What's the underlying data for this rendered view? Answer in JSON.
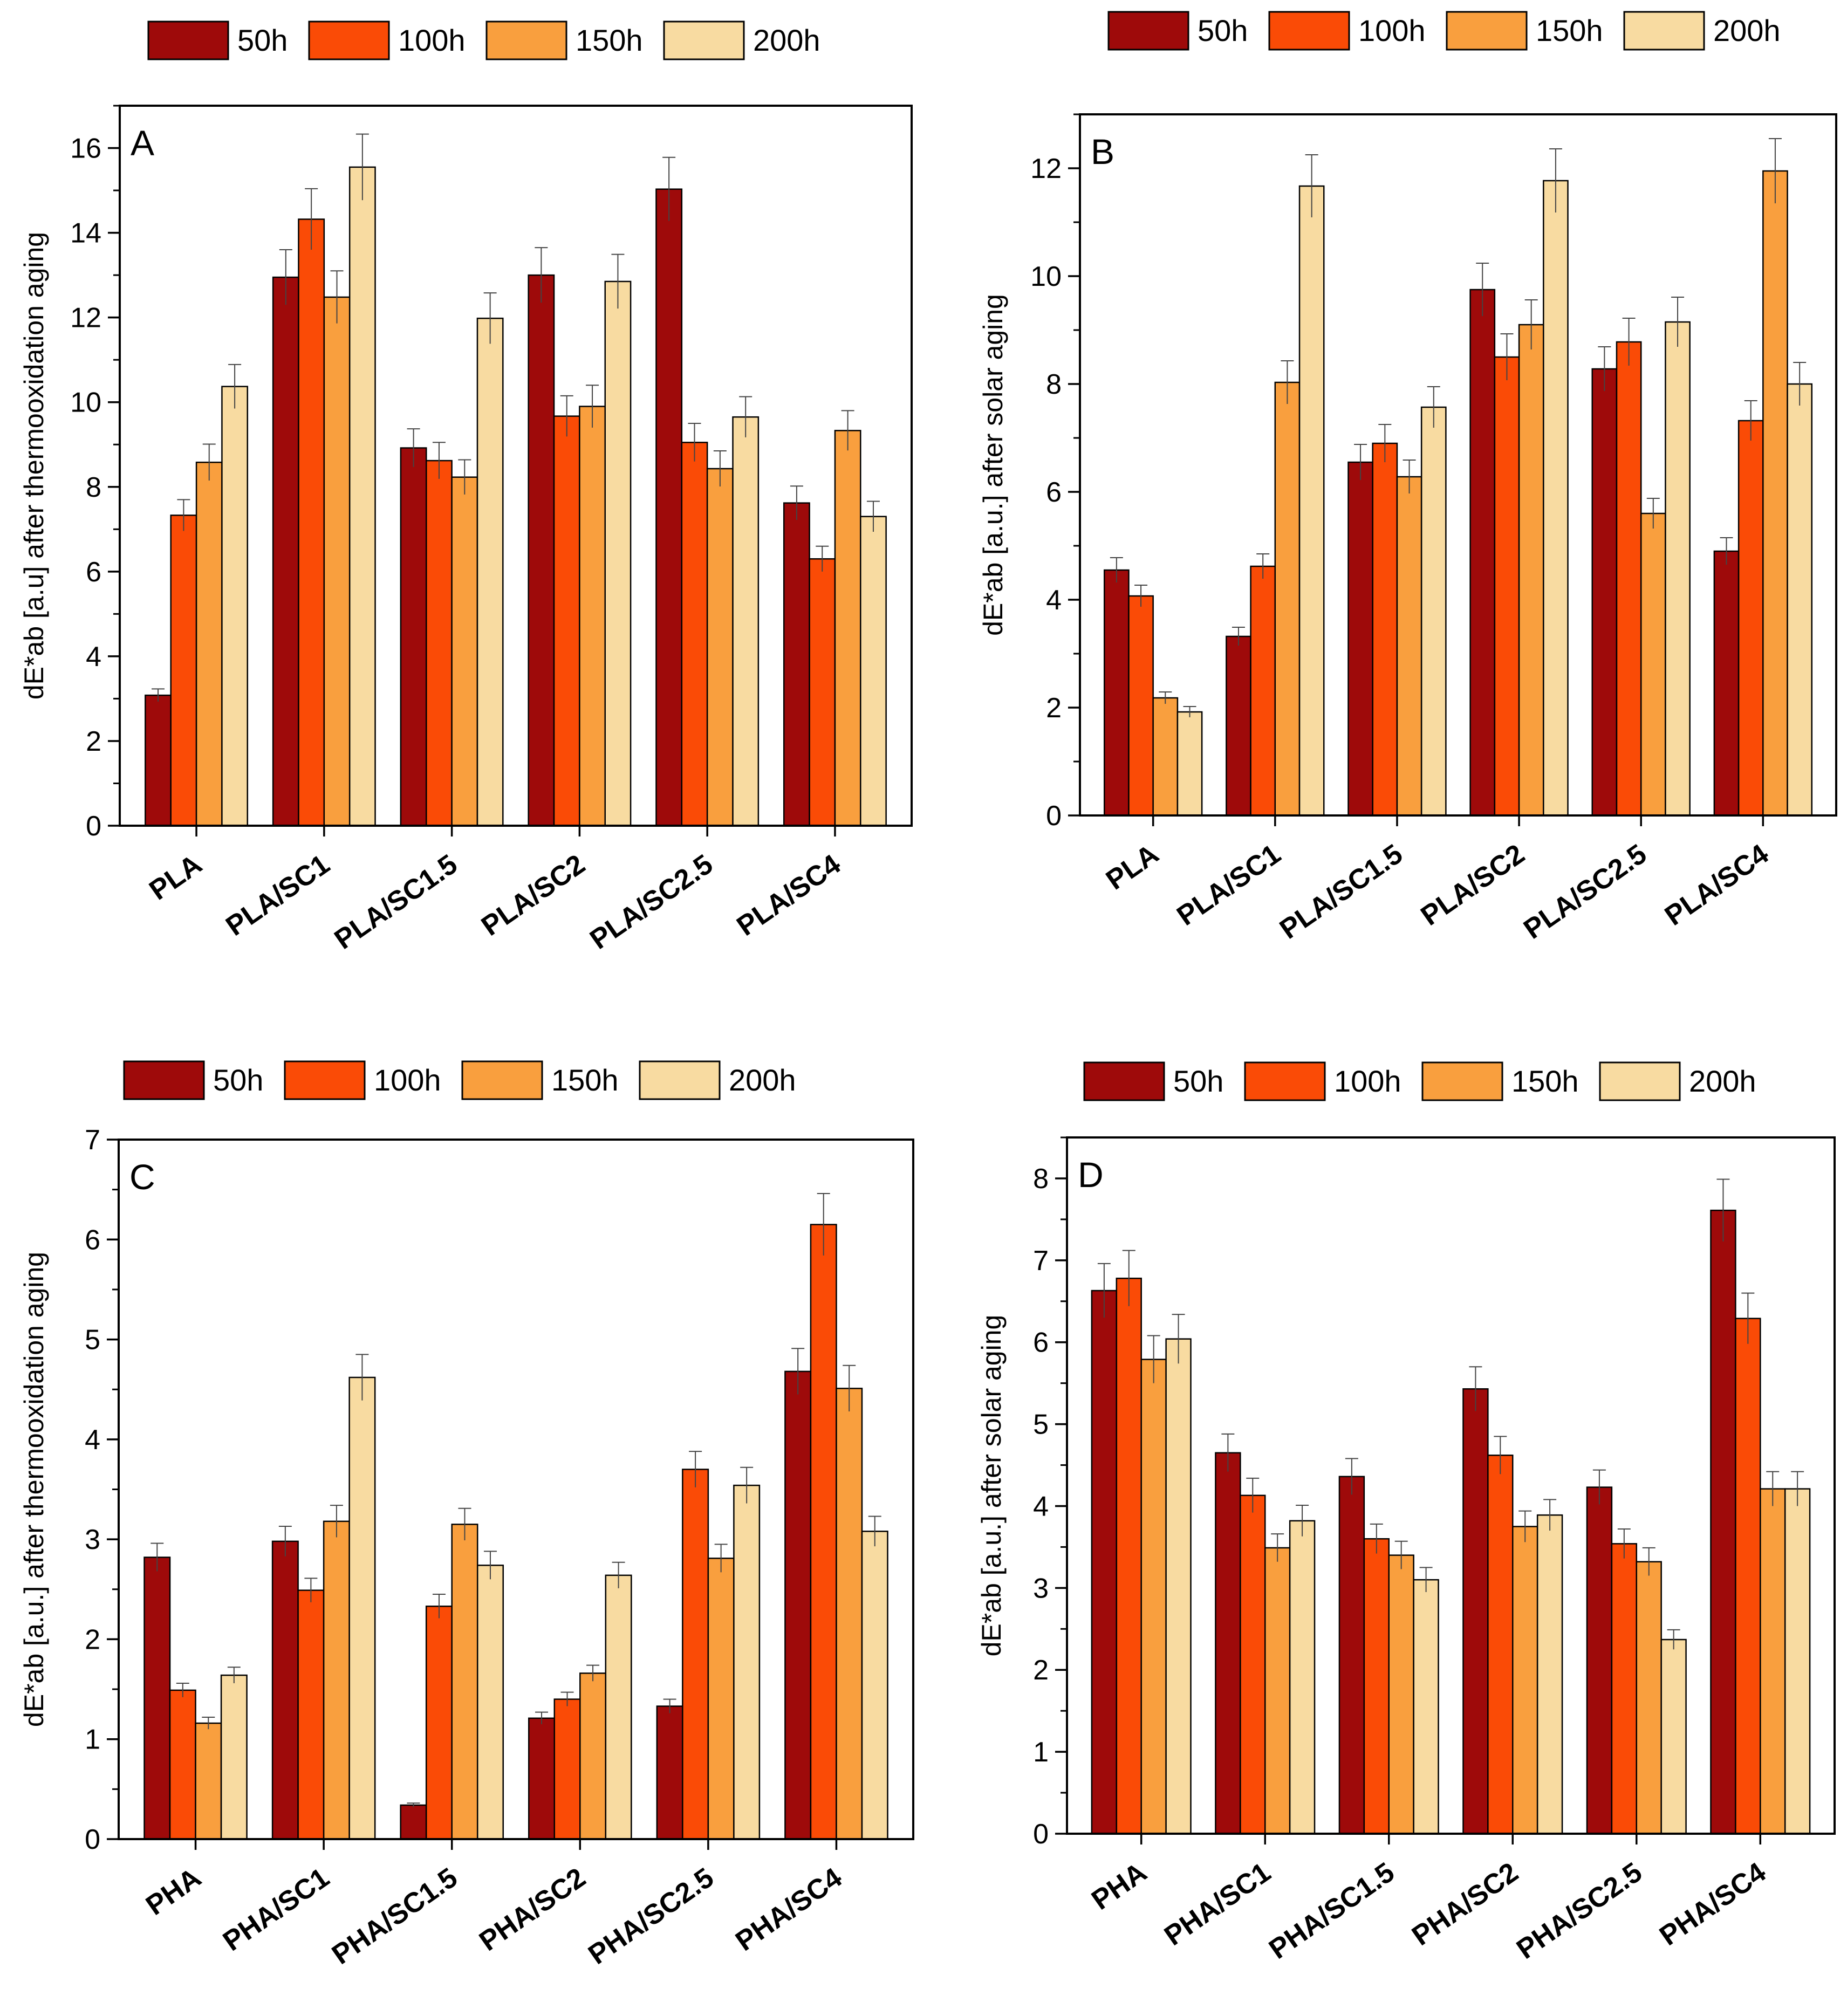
{
  "colors": {
    "50h": "#9e0a0a",
    "100h": "#fa4b06",
    "150h": "#f99f3e",
    "200h": "#f8dba1"
  },
  "chart_data": [
    {
      "type": "bar",
      "panel": "A",
      "ylabel": "dE*ab [a.u] after thermooxidation aging",
      "xlabel": "",
      "ylim": [
        0,
        17
      ],
      "yticks": [
        0,
        2,
        4,
        6,
        8,
        10,
        12,
        14,
        16
      ],
      "yminor": 1,
      "categories": [
        "PLA",
        "PLA/SC1",
        "PLA/SC1.5",
        "PLA/SC2",
        "PLA/SC2.5",
        "PLA/SC4"
      ],
      "series": [
        {
          "name": "50h",
          "values": [
            3.08,
            12.95,
            8.92,
            13.0,
            15.03,
            7.62
          ],
          "errors": [
            0.15,
            0.65,
            0.45,
            0.65,
            0.75,
            0.4
          ]
        },
        {
          "name": "100h",
          "values": [
            7.33,
            14.32,
            8.62,
            9.67,
            9.05,
            6.3
          ],
          "errors": [
            0.37,
            0.72,
            0.43,
            0.48,
            0.45,
            0.3
          ]
        },
        {
          "name": "150h",
          "values": [
            8.58,
            12.48,
            8.23,
            9.9,
            8.43,
            9.33
          ],
          "errors": [
            0.43,
            0.62,
            0.41,
            0.5,
            0.42,
            0.47
          ]
        },
        {
          "name": "200h",
          "values": [
            10.37,
            15.55,
            11.98,
            12.85,
            9.65,
            7.3
          ],
          "errors": [
            0.52,
            0.78,
            0.6,
            0.64,
            0.48,
            0.36
          ]
        }
      ]
    },
    {
      "type": "bar",
      "panel": "B",
      "ylabel": "dE*ab [a.u.] after solar aging",
      "xlabel": "",
      "ylim": [
        0,
        13
      ],
      "yticks": [
        0,
        2,
        4,
        6,
        8,
        10,
        12
      ],
      "yminor": 1,
      "categories": [
        "PLA",
        "PLA/SC1",
        "PLA/SC1.5",
        "PLA/SC2",
        "PLA/SC2.5",
        "PLA/SC4"
      ],
      "series": [
        {
          "name": "50h",
          "values": [
            4.55,
            3.32,
            6.55,
            9.75,
            8.28,
            4.9
          ],
          "errors": [
            0.23,
            0.17,
            0.33,
            0.49,
            0.41,
            0.25
          ]
        },
        {
          "name": "100h",
          "values": [
            4.07,
            4.62,
            6.9,
            8.5,
            8.78,
            7.32
          ],
          "errors": [
            0.2,
            0.23,
            0.35,
            0.43,
            0.44,
            0.37
          ]
        },
        {
          "name": "150h",
          "values": [
            2.18,
            8.03,
            6.28,
            9.1,
            5.6,
            11.95
          ],
          "errors": [
            0.11,
            0.4,
            0.31,
            0.46,
            0.28,
            0.6
          ]
        },
        {
          "name": "200h",
          "values": [
            1.92,
            11.67,
            7.57,
            11.77,
            9.15,
            8.0
          ],
          "errors": [
            0.1,
            0.58,
            0.38,
            0.59,
            0.46,
            0.4
          ]
        }
      ]
    },
    {
      "type": "bar",
      "panel": "C",
      "ylabel": "dE*ab [a.u.] after thermooxidation aging",
      "xlabel": "",
      "ylim": [
        0,
        7
      ],
      "yticks": [
        0,
        1,
        2,
        3,
        4,
        5,
        6,
        7
      ],
      "yminor": 0.5,
      "categories": [
        "PHA",
        "PHA/SC1",
        "PHA/SC1.5",
        "PHA/SC2",
        "PHA/SC2.5",
        "PHA/SC4"
      ],
      "series": [
        {
          "name": "50h",
          "values": [
            2.82,
            2.98,
            0.34,
            1.21,
            1.33,
            4.68
          ],
          "errors": [
            0.14,
            0.15,
            0.02,
            0.06,
            0.07,
            0.23
          ]
        },
        {
          "name": "100h",
          "values": [
            1.49,
            2.49,
            2.33,
            1.4,
            3.7,
            6.15
          ],
          "errors": [
            0.07,
            0.12,
            0.12,
            0.07,
            0.18,
            0.31
          ]
        },
        {
          "name": "150h",
          "values": [
            1.16,
            3.18,
            3.15,
            1.66,
            2.81,
            4.51
          ],
          "errors": [
            0.06,
            0.16,
            0.16,
            0.08,
            0.14,
            0.23
          ]
        },
        {
          "name": "200h",
          "values": [
            1.64,
            4.62,
            2.74,
            2.64,
            3.54,
            3.08
          ],
          "errors": [
            0.08,
            0.23,
            0.14,
            0.13,
            0.18,
            0.15
          ]
        }
      ]
    },
    {
      "type": "bar",
      "panel": "D",
      "ylabel": "dE*ab [a.u.] after solar aging",
      "xlabel": "",
      "ylim": [
        0,
        8.5
      ],
      "yticks": [
        0,
        1,
        2,
        3,
        4,
        5,
        6,
        7,
        8
      ],
      "yminor": 0.5,
      "categories": [
        "PHA",
        "PHA/SC1",
        "PHA/SC1.5",
        "PHA/SC2",
        "PHA/SC2.5",
        "PHA/SC4"
      ],
      "series": [
        {
          "name": "50h",
          "values": [
            6.63,
            4.65,
            4.36,
            5.43,
            4.23,
            7.61
          ],
          "errors": [
            0.33,
            0.23,
            0.22,
            0.27,
            0.21,
            0.38
          ]
        },
        {
          "name": "100h",
          "values": [
            6.78,
            4.13,
            3.6,
            4.62,
            3.54,
            6.29
          ],
          "errors": [
            0.34,
            0.21,
            0.18,
            0.23,
            0.18,
            0.31
          ]
        },
        {
          "name": "150h",
          "values": [
            5.79,
            3.49,
            3.4,
            3.75,
            3.32,
            4.21
          ],
          "errors": [
            0.29,
            0.17,
            0.17,
            0.19,
            0.17,
            0.21
          ]
        },
        {
          "name": "200h",
          "values": [
            6.04,
            3.82,
            3.1,
            3.89,
            2.37,
            4.21
          ],
          "errors": [
            0.3,
            0.19,
            0.15,
            0.19,
            0.12,
            0.21
          ]
        }
      ]
    }
  ]
}
